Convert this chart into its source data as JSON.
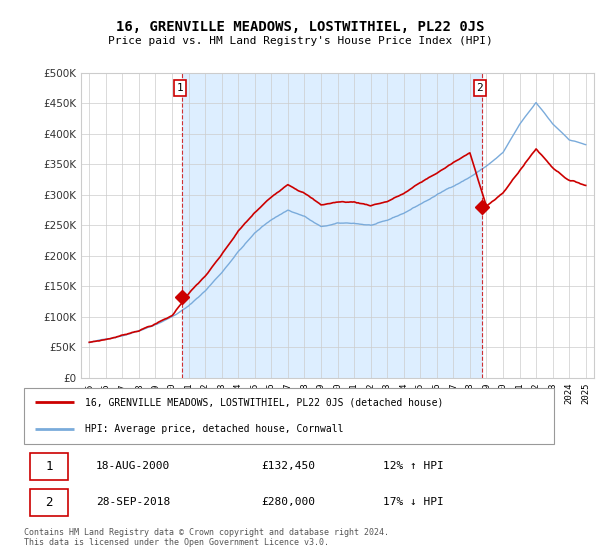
{
  "title": "16, GRENVILLE MEADOWS, LOSTWITHIEL, PL22 0JS",
  "subtitle": "Price paid vs. HM Land Registry's House Price Index (HPI)",
  "legend_line1": "16, GRENVILLE MEADOWS, LOSTWITHIEL, PL22 0JS (detached house)",
  "legend_line2": "HPI: Average price, detached house, Cornwall",
  "footnote": "Contains HM Land Registry data © Crown copyright and database right 2024.\nThis data is licensed under the Open Government Licence v3.0.",
  "sale1_label": "18-AUG-2000",
  "sale1_price": "£132,450",
  "sale1_hpi": "12% ↑ HPI",
  "sale1_year": 2000.622,
  "sale1_value": 132450,
  "sale2_label": "28-SEP-2018",
  "sale2_price": "£280,000",
  "sale2_hpi": "17% ↓ HPI",
  "sale2_year": 2018.747,
  "sale2_value": 280000,
  "marker1_color": "#cc0000",
  "marker2_color": "#cc0000",
  "vline_color": "#cc0000",
  "hpi_line_color": "#7aabdb",
  "price_line_color": "#cc0000",
  "shade_color": "#ddeeff",
  "ylim": [
    0,
    500000
  ],
  "xlim_start": 1994.5,
  "xlim_end": 2025.5,
  "background_color": "#ffffff",
  "grid_color": "#cccccc",
  "yticks": [
    0,
    50000,
    100000,
    150000,
    200000,
    250000,
    300000,
    350000,
    400000,
    450000,
    500000
  ],
  "xtick_years": [
    1995,
    1996,
    1997,
    1998,
    1999,
    2000,
    2001,
    2002,
    2003,
    2004,
    2005,
    2006,
    2007,
    2008,
    2009,
    2010,
    2011,
    2012,
    2013,
    2014,
    2015,
    2016,
    2017,
    2018,
    2019,
    2020,
    2021,
    2022,
    2023,
    2024,
    2025
  ]
}
